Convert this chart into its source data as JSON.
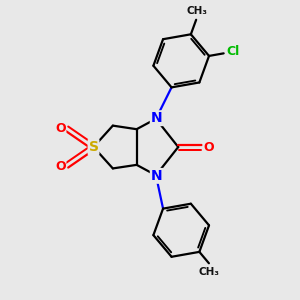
{
  "bg_color": "#e8e8e8",
  "atom_colors": {
    "C": "#000000",
    "N": "#0000ff",
    "O": "#ff0000",
    "S": "#ccaa00",
    "Cl": "#00bb00"
  },
  "bond_color": "#000000",
  "bond_width": 1.6,
  "fig_size": [
    3.0,
    3.0
  ],
  "dpi": 100
}
